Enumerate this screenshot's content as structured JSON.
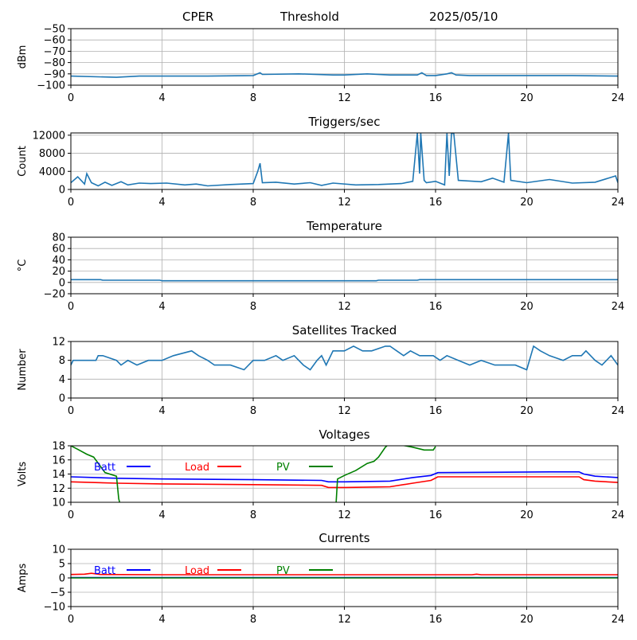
{
  "header": {
    "site": "CPER",
    "mode": "Threshold",
    "date": "2025/05/10"
  },
  "colors": {
    "series": "#1f77b4",
    "batt": "#0000ff",
    "load": "#ff0000",
    "pv": "#008000",
    "grid": "#b0b0b0"
  },
  "chart_data": [
    {
      "type": "line",
      "title": "",
      "ylabel": "dBm",
      "xlim": [
        0,
        24
      ],
      "ylim": [
        -100,
        -50
      ],
      "xticks": [
        0,
        4,
        8,
        12,
        16,
        20,
        24
      ],
      "yticks": [
        -100,
        -90,
        -80,
        -70,
        -60,
        -50
      ],
      "ytick_labels": [
        "−100",
        "−90",
        "−80",
        "−70",
        "−60",
        "−50"
      ],
      "grid": true,
      "series": [
        {
          "color": "#1f77b4",
          "x": [
            0,
            2,
            3,
            6,
            8,
            8.3,
            8.4,
            10,
            11.5,
            12,
            13,
            14,
            15.2,
            15.4,
            15.6,
            16,
            16.5,
            16.7,
            16.9,
            17.5,
            20,
            22,
            24
          ],
          "y": [
            -92,
            -93,
            -92,
            -92,
            -91.5,
            -89,
            -90.5,
            -90,
            -91,
            -91,
            -90,
            -91,
            -91,
            -89,
            -91.5,
            -91.5,
            -90,
            -89,
            -91,
            -91.5,
            -91.5,
            -91.5,
            -92
          ]
        }
      ]
    },
    {
      "type": "line",
      "title": "Triggers/sec",
      "ylabel": "Count",
      "xlim": [
        0,
        24
      ],
      "ylim": [
        0,
        12500
      ],
      "xticks": [
        0,
        4,
        8,
        12,
        16,
        20,
        24
      ],
      "yticks": [
        0,
        4000,
        8000,
        12000
      ],
      "ytick_labels": [
        "0",
        "4000",
        "8000",
        "12000"
      ],
      "grid": true,
      "series": [
        {
          "color": "#1f77b4",
          "x": [
            0,
            0.3,
            0.6,
            0.7,
            0.9,
            1.2,
            1.5,
            1.8,
            2.2,
            2.5,
            3.0,
            3.5,
            4.2,
            5.0,
            5.5,
            6.0,
            7.0,
            8.0,
            8.2,
            8.3,
            8.4,
            9.0,
            9.8,
            10.5,
            11.0,
            11.5,
            12.5,
            13.5,
            14.5,
            15.0,
            15.2,
            15.3,
            15.35,
            15.5,
            15.6,
            16.0,
            16.4,
            16.5,
            16.6,
            16.7,
            16.8,
            17.0,
            18.0,
            18.5,
            19.0,
            19.2,
            19.3,
            20.0,
            21.0,
            22.0,
            23.0,
            23.9,
            24.0
          ],
          "y": [
            1500,
            2800,
            1200,
            3500,
            1500,
            800,
            1600,
            900,
            1700,
            1000,
            1400,
            1300,
            1400,
            1000,
            1200,
            800,
            1100,
            1300,
            4000,
            5800,
            1500,
            1600,
            1200,
            1500,
            900,
            1400,
            1000,
            1100,
            1300,
            1800,
            12400,
            3500,
            12400,
            2000,
            1500,
            1800,
            1000,
            12400,
            3000,
            12400,
            12400,
            2000,
            1700,
            2500,
            1600,
            12400,
            2000,
            1500,
            2200,
            1400,
            1600,
            3000,
            1500
          ]
        }
      ]
    },
    {
      "type": "line",
      "title": "Temperature",
      "ylabel": "°C",
      "xlim": [
        0,
        24
      ],
      "ylim": [
        -20,
        80
      ],
      "xticks": [
        0,
        4,
        8,
        12,
        16,
        20,
        24
      ],
      "yticks": [
        -20,
        0,
        20,
        40,
        60,
        80
      ],
      "ytick_labels": [
        "−20",
        "0",
        "20",
        "40",
        "60",
        "80"
      ],
      "grid": true,
      "series": [
        {
          "color": "#1f77b4",
          "x": [
            0,
            1.3,
            1.4,
            3.9,
            4.0,
            13.4,
            13.5,
            15.2,
            15.3,
            24
          ],
          "y": [
            5,
            5,
            4,
            4,
            3,
            3,
            4,
            4,
            5,
            5
          ]
        }
      ]
    },
    {
      "type": "line",
      "title": "Satellites Tracked",
      "ylabel": "Number",
      "xlim": [
        0,
        24
      ],
      "ylim": [
        0,
        12
      ],
      "xticks": [
        0,
        4,
        8,
        12,
        16,
        20,
        24
      ],
      "yticks": [
        0,
        4,
        8,
        12
      ],
      "ytick_labels": [
        "0",
        "4",
        "8",
        "12"
      ],
      "grid": true,
      "series": [
        {
          "color": "#1f77b4",
          "x": [
            0,
            0.1,
            1.1,
            1.2,
            1.4,
            2.0,
            2.2,
            2.5,
            2.9,
            3.4,
            3.6,
            4.0,
            4.5,
            5.3,
            5.6,
            6.0,
            6.3,
            6.8,
            7.0,
            7.6,
            8.0,
            8.5,
            9.0,
            9.3,
            9.8,
            10.2,
            10.5,
            10.8,
            11.0,
            11.2,
            11.5,
            11.9,
            12.0,
            12.4,
            12.8,
            13.2,
            13.8,
            14.0,
            14.3,
            14.6,
            14.9,
            15.3,
            15.5,
            15.9,
            16.2,
            16.5,
            17.0,
            17.5,
            18.0,
            18.6,
            19.5,
            20.0,
            20.3,
            20.6,
            21.0,
            21.6,
            22.0,
            22.4,
            22.6,
            22.8,
            23.0,
            23.3,
            23.7,
            24.0
          ],
          "y": [
            7,
            8,
            8,
            9,
            9,
            8,
            7,
            8,
            7,
            8,
            8,
            8,
            9,
            10,
            9,
            8,
            7,
            7,
            7,
            6,
            8,
            8,
            9,
            8,
            9,
            7,
            6,
            8,
            9,
            7,
            10,
            10,
            10,
            11,
            10,
            10,
            11,
            11,
            10,
            9,
            10,
            9,
            9,
            9,
            8,
            9,
            8,
            7,
            8,
            7,
            7,
            6,
            11,
            10,
            9,
            8,
            9,
            9,
            10,
            9,
            8,
            7,
            9,
            7
          ]
        }
      ]
    },
    {
      "type": "line",
      "title": "Voltages",
      "ylabel": "Volts",
      "xlim": [
        0,
        24
      ],
      "ylim": [
        10,
        18
      ],
      "xticks": [
        0,
        4,
        8,
        12,
        16,
        20,
        24
      ],
      "yticks": [
        10,
        12,
        14,
        16,
        18
      ],
      "ytick_labels": [
        "10",
        "12",
        "14",
        "16",
        "18"
      ],
      "grid": true,
      "legend": "top-left",
      "series": [
        {
          "name": "Batt",
          "color": "#0000ff",
          "x": [
            0,
            2,
            4,
            8,
            11,
            11.3,
            12,
            14,
            15,
            15.8,
            16.1,
            21,
            22.3,
            22.5,
            23,
            24
          ],
          "y": [
            13.6,
            13.4,
            13.3,
            13.2,
            13.1,
            12.9,
            12.9,
            13.0,
            13.5,
            13.8,
            14.2,
            14.3,
            14.3,
            14.0,
            13.7,
            13.5
          ]
        },
        {
          "name": "Load",
          "color": "#ff0000",
          "x": [
            0,
            2,
            4,
            8,
            11,
            11.3,
            12,
            14,
            15,
            15.8,
            16.1,
            21,
            22.3,
            22.5,
            23,
            24
          ],
          "y": [
            12.9,
            12.7,
            12.6,
            12.5,
            12.4,
            12.1,
            12.1,
            12.2,
            12.7,
            13.1,
            13.6,
            13.6,
            13.6,
            13.2,
            13.0,
            12.8
          ]
        },
        {
          "name": "PV",
          "color": "#008000",
          "x": [
            0,
            0.3,
            0.7,
            1.0,
            1.5,
            2.0,
            2.1,
            2.3,
            11.6,
            11.7,
            12.0,
            12.5,
            13.0,
            13.3,
            13.5,
            13.8,
            14.0,
            15.0,
            15.5,
            15.9,
            16.0
          ],
          "y": [
            18,
            17.5,
            16.8,
            16.4,
            14.2,
            13.7,
            10.5,
            8.0,
            8.0,
            13.3,
            13.8,
            14.5,
            15.5,
            15.8,
            16.4,
            17.8,
            18.4,
            17.8,
            17.4,
            17.4,
            17.9
          ]
        }
      ]
    },
    {
      "type": "line",
      "title": "Currents",
      "ylabel": "Amps",
      "xlim": [
        0,
        24
      ],
      "ylim": [
        -10,
        10
      ],
      "xticks": [
        0,
        4,
        8,
        12,
        16,
        20,
        24
      ],
      "yticks": [
        -10,
        -5,
        0,
        5,
        10
      ],
      "ytick_labels": [
        "−10",
        "−5",
        "0",
        "5",
        "10"
      ],
      "grid": true,
      "legend": "top-left",
      "series": [
        {
          "name": "Batt",
          "color": "#0000ff",
          "x": [
            0,
            24
          ],
          "y": [
            0.1,
            0.1
          ]
        },
        {
          "name": "Load",
          "color": "#ff0000",
          "x": [
            0,
            0.6,
            0.9,
            1.3,
            4,
            12,
            17.6,
            17.8,
            18,
            24
          ],
          "y": [
            1.2,
            1.3,
            1.6,
            1.2,
            1.1,
            1.1,
            1.1,
            1.3,
            1.1,
            1.1
          ]
        },
        {
          "name": "PV",
          "color": "#008000",
          "x": [
            0,
            24
          ],
          "y": [
            0,
            0
          ]
        }
      ]
    }
  ]
}
